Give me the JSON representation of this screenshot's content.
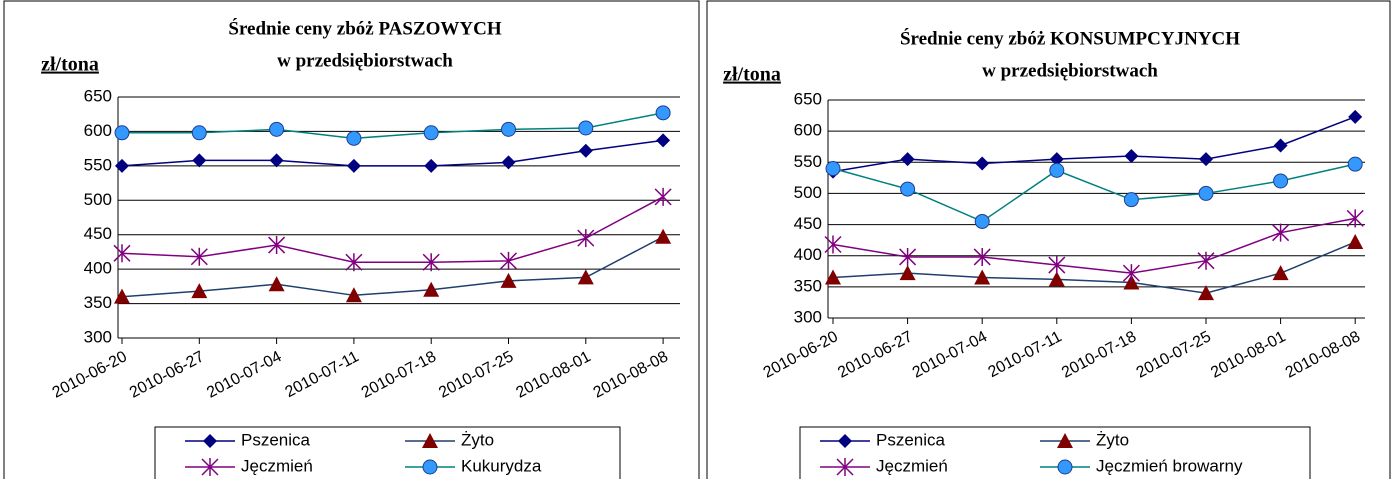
{
  "chart_data": [
    {
      "type": "line",
      "title": "Średnie ceny zbóż PASZOWYCH",
      "subtitle": "w przedsiębiorstwach",
      "y_label": "zł/tona",
      "categories": [
        "2010-06-20",
        "2010-06-27",
        "2010-07-04",
        "2010-07-11",
        "2010-07-18",
        "2010-07-25",
        "2010-08-01",
        "2010-08-08"
      ],
      "ylim": [
        300,
        650
      ],
      "yticks": [
        300,
        350,
        400,
        450,
        500,
        550,
        600,
        650
      ],
      "grid": true,
      "series": [
        {
          "name": "Pszenica",
          "color": "#000080",
          "marker": "diamond",
          "marker_color": "#000080",
          "values": [
            550,
            558,
            558,
            550,
            550,
            555,
            572,
            587
          ]
        },
        {
          "name": "Żyto",
          "color": "#1f3f6f",
          "marker": "triangle",
          "marker_color": "#800000",
          "values": [
            360,
            368,
            378,
            362,
            370,
            383,
            388,
            447
          ]
        },
        {
          "name": "Jęczmień",
          "color": "#800080",
          "marker": "star",
          "marker_color": "#800080",
          "values": [
            423,
            418,
            435,
            410,
            410,
            412,
            445,
            505
          ]
        },
        {
          "name": "Kukurydza",
          "color": "#008080",
          "marker": "circle",
          "marker_color": "#3399ff",
          "values": [
            598,
            598,
            603,
            590,
            598,
            603,
            605,
            627
          ]
        }
      ]
    },
    {
      "type": "line",
      "title": "Średnie ceny zbóż KONSUMPCYJNYCH",
      "subtitle": "w przedsiębiorstwach",
      "y_label": "zł/tona",
      "categories": [
        "2010-06-20",
        "2010-06-27",
        "2010-07-04",
        "2010-07-11",
        "2010-07-18",
        "2010-07-25",
        "2010-08-01",
        "2010-08-08"
      ],
      "ylim": [
        300,
        650
      ],
      "yticks": [
        300,
        350,
        400,
        450,
        500,
        550,
        600,
        650
      ],
      "grid": true,
      "series": [
        {
          "name": "Pszenica",
          "color": "#000080",
          "marker": "diamond",
          "marker_color": "#000080",
          "values": [
            535,
            555,
            548,
            555,
            560,
            555,
            577,
            623
          ]
        },
        {
          "name": "Żyto",
          "color": "#1f3f6f",
          "marker": "triangle",
          "marker_color": "#800000",
          "values": [
            365,
            372,
            365,
            362,
            357,
            340,
            372,
            422
          ]
        },
        {
          "name": "Jęczmień",
          "color": "#800080",
          "marker": "star",
          "marker_color": "#800080",
          "values": [
            418,
            398,
            398,
            385,
            372,
            392,
            437,
            460
          ]
        },
        {
          "name": "Jęczmień browarny",
          "color": "#008080",
          "marker": "circle",
          "marker_color": "#3399ff",
          "values": [
            540,
            507,
            455,
            537,
            490,
            500,
            520,
            547
          ]
        }
      ]
    }
  ]
}
